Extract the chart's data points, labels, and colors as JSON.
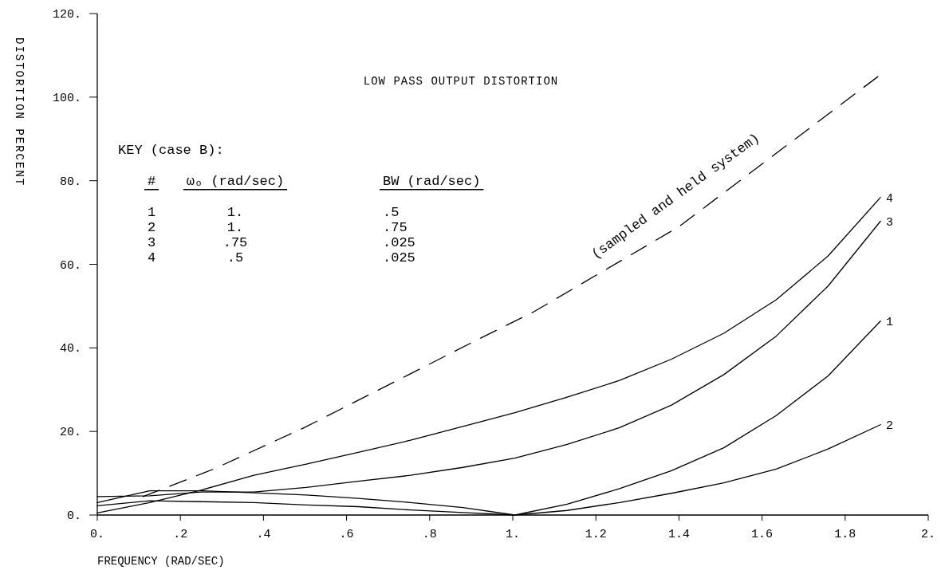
{
  "chart_data": {
    "type": "line",
    "title": "LOW PASS OUTPUT DISTORTION",
    "xlabel": "FREQUENCY (RAD/SEC)",
    "ylabel": "DISTORTION PERCENT",
    "x": [
      0,
      0.126,
      0.251,
      0.377,
      0.503,
      0.628,
      0.754,
      0.88,
      1.005,
      1.131,
      1.257,
      1.382,
      1.508,
      1.634,
      1.759,
      1.885
    ],
    "series": [
      {
        "name": "1",
        "color": "#000000",
        "values": [
          3,
          5.8,
          5.8,
          5.3,
          4.8,
          4,
          3,
          1.8,
          0,
          2.6,
          6.3,
          10.6,
          16.1,
          23.8,
          33.3,
          46.4
        ]
      },
      {
        "name": "2",
        "color": "#000000",
        "values": [
          2.2,
          3.4,
          3.2,
          3,
          2.4,
          2,
          1.2,
          0.6,
          0,
          1.1,
          3,
          5.2,
          7.7,
          11,
          15.8,
          21.6
        ]
      },
      {
        "name": "3",
        "color": "#000000",
        "values": [
          4.4,
          4.6,
          5.5,
          5.5,
          6.6,
          8.1,
          9.5,
          11.4,
          13.6,
          16.9,
          20.9,
          26.3,
          33.6,
          42.8,
          54.8,
          70.3
        ]
      },
      {
        "name": "4",
        "color": "#000000",
        "values": [
          0.5,
          3,
          6,
          9.5,
          12.2,
          15,
          17.9,
          21.2,
          24.5,
          28.2,
          32.2,
          37.3,
          43.5,
          51.5,
          62,
          76
        ]
      },
      {
        "color": "#000000",
        "line_style": "dashed",
        "x": [
          0.11,
          0.28,
          0.5,
          0.91,
          1.05,
          1.4,
          1.648,
          1.884
        ],
        "values": [
          4.4,
          11,
          21,
          41.7,
          48.6,
          69,
          87.6,
          105.3
        ]
      }
    ],
    "xlim": [
      0,
      2
    ],
    "ylim": [
      0,
      120
    ],
    "xticks": [
      {
        "value": 0,
        "label": "0."
      },
      {
        "value": 0.2,
        "label": ".2"
      },
      {
        "value": 0.4,
        "label": ".4"
      },
      {
        "value": 0.6,
        "label": ".6"
      },
      {
        "value": 0.8,
        "label": ".8"
      },
      {
        "value": 1,
        "label": "1."
      },
      1.2,
      1.4,
      1.6,
      1.8,
      {
        "value": 2,
        "label": "2."
      }
    ],
    "yticks": [
      {
        "value": 0,
        "label": "0."
      },
      {
        "value": 20,
        "label": "20."
      },
      {
        "value": 40,
        "label": "40."
      },
      {
        "value": 60,
        "label": "60."
      },
      {
        "value": 80,
        "label": "80."
      },
      {
        "value": 100,
        "label": "100."
      },
      {
        "value": 120,
        "label": "120."
      }
    ],
    "grid": false,
    "line_style": "solid",
    "annotations": [
      "(sampled and held system)",
      "KEY (case B):",
      "#",
      "ωₒ (rad/sec)",
      "BW (rad/sec)",
      "1",
      "1.",
      ".5",
      "2",
      "1.",
      ".75",
      "3",
      ".75",
      ".025",
      "4",
      ".5",
      ".025"
    ]
  }
}
